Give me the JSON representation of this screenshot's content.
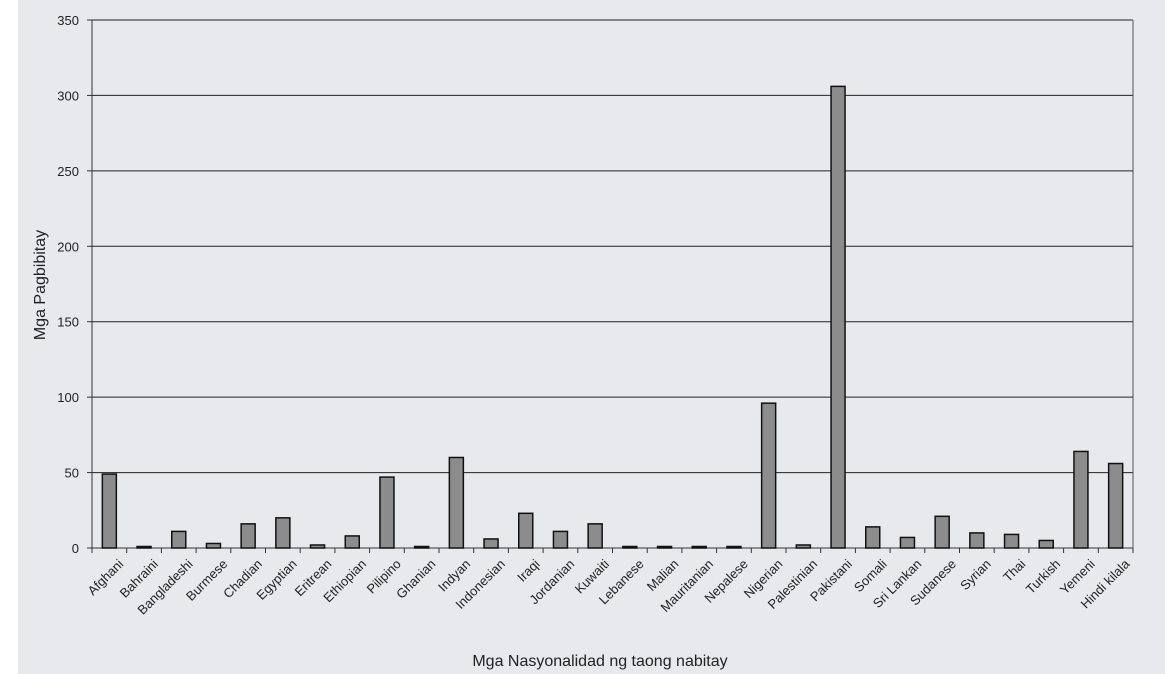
{
  "chart_data": {
    "type": "bar",
    "title": "",
    "xlabel": "Mga Nasyonalidad ng taong nabitay",
    "ylabel": "Mga Pagbibitay",
    "ylim": [
      0,
      350
    ],
    "yticks": [
      0,
      50,
      100,
      150,
      200,
      250,
      300,
      350
    ],
    "grid": true,
    "legend": "none",
    "colors": {
      "bar_fill": "#8c8c8c",
      "bar_stroke": "#111111",
      "background": "#e8e9ec",
      "grid": "#222222"
    },
    "categories": [
      "Afghani",
      "Bahraini",
      "Bangladeshi",
      "Burmese",
      "Chadian",
      "Egyptian",
      "Eritrean",
      "Ethiopian",
      "Pilipino",
      "Ghanian",
      "Indyan",
      "Indonesian",
      "Iraqi",
      "Jordanian",
      "Kuwaiti",
      "Lebanese",
      "Malian",
      "Mauritanian",
      "Nepalese",
      "Nigerian",
      "Palestinian",
      "Pakistani",
      "Somali",
      "Sri Lankan",
      "Sudanese",
      "Syrian",
      "Thai",
      "Turkish",
      "Yemeni",
      "Hindi kilala"
    ],
    "values": [
      49,
      1,
      11,
      3,
      16,
      20,
      2,
      8,
      47,
      1,
      60,
      6,
      23,
      11,
      16,
      1,
      1,
      1,
      1,
      96,
      2,
      306,
      14,
      7,
      21,
      10,
      9,
      5,
      64,
      56
    ]
  }
}
